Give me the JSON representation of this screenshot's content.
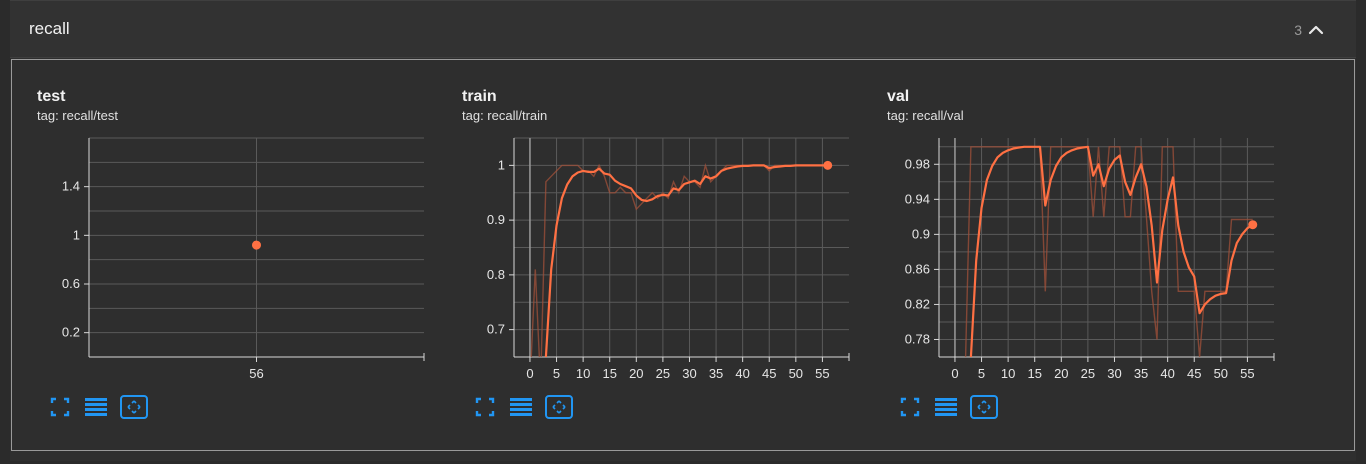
{
  "section": {
    "title": "recall",
    "count": "3"
  },
  "cards": [
    {
      "title": "test",
      "tag": "tag: recall/test",
      "chart_data": {
        "type": "scatter",
        "title": "test",
        "x_ticks": [
          56
        ],
        "y_ticks": [
          0.2,
          0.6,
          1,
          1.4
        ],
        "y_tick_labels": [
          "0.2",
          "0.6",
          "1",
          "1.4"
        ],
        "xlim": [
          0,
          112
        ],
        "ylim": [
          0.0,
          1.8
        ],
        "grid": true,
        "series": [
          {
            "x": [
              56
            ],
            "y": [
              0.92
            ]
          }
        ]
      }
    },
    {
      "title": "train",
      "tag": "tag: recall/train",
      "chart_data": {
        "type": "line",
        "title": "train",
        "x_ticks": [
          0,
          5,
          10,
          15,
          20,
          25,
          30,
          35,
          40,
          45,
          50,
          55
        ],
        "y_ticks": [
          0.7,
          0.8,
          0.9,
          1
        ],
        "y_tick_labels": [
          "0.7",
          "0.8",
          "0.9",
          "1"
        ],
        "xlim": [
          -3,
          60
        ],
        "ylim": [
          0.65,
          1.05
        ],
        "grid": true,
        "series": [
          {
            "role": "raw",
            "x": [
              0,
              1,
              2,
              3,
              4,
              5,
              6,
              7,
              8,
              9,
              10,
              11,
              12,
              13,
              14,
              15,
              16,
              17,
              18,
              19,
              20,
              21,
              22,
              23,
              24,
              25,
              26,
              27,
              28,
              29,
              30,
              31,
              32,
              33,
              34,
              35,
              36,
              37,
              38,
              39,
              40,
              41,
              42,
              43,
              44,
              45,
              46,
              47,
              48,
              49,
              50,
              51,
              52,
              53,
              54,
              55,
              56
            ],
            "y": [
              0.6,
              0.81,
              0.6,
              0.97,
              0.98,
              0.99,
              1.0,
              1.0,
              1.0,
              1.0,
              0.99,
              0.99,
              0.98,
              1.0,
              0.98,
              0.95,
              0.95,
              0.96,
              0.95,
              0.95,
              0.92,
              0.93,
              0.94,
              0.95,
              0.94,
              0.95,
              0.94,
              0.97,
              0.95,
              0.98,
              0.97,
              0.97,
              0.96,
              1.0,
              0.97,
              0.98,
              0.99,
              1.0,
              1.0,
              1.0,
              1.0,
              1.0,
              1.0,
              1.0,
              1.0,
              0.99,
              1.0,
              1.0,
              1.0,
              1.0,
              1.0,
              1.0,
              1.0,
              1.0,
              1.0,
              1.0,
              1.0
            ]
          },
          {
            "role": "smoothed",
            "x": [
              3,
              4,
              5,
              6,
              7,
              8,
              9,
              10,
              11,
              12,
              13,
              14,
              15,
              16,
              17,
              18,
              19,
              20,
              21,
              22,
              23,
              24,
              25,
              26,
              27,
              28,
              29,
              30,
              31,
              32,
              33,
              34,
              35,
              36,
              37,
              38,
              39,
              40,
              41,
              42,
              43,
              44,
              45,
              46,
              47,
              48,
              49,
              50,
              51,
              52,
              53,
              54,
              55,
              56
            ],
            "y": [
              0.65,
              0.81,
              0.89,
              0.94,
              0.965,
              0.98,
              0.987,
              0.99,
              0.988,
              0.988,
              0.994,
              0.985,
              0.983,
              0.972,
              0.966,
              0.962,
              0.958,
              0.945,
              0.937,
              0.935,
              0.938,
              0.944,
              0.946,
              0.945,
              0.958,
              0.955,
              0.966,
              0.969,
              0.972,
              0.966,
              0.98,
              0.976,
              0.98,
              0.99,
              0.994,
              0.996,
              0.998,
              0.999,
              0.999,
              1.0,
              1.0,
              1.0,
              0.995,
              0.997,
              0.998,
              0.999,
              0.999,
              1.0,
              1.0,
              1.0,
              1.0,
              1.0,
              1.0,
              1.0
            ]
          }
        ]
      }
    },
    {
      "title": "val",
      "tag": "tag: recall/val",
      "chart_data": {
        "type": "line",
        "title": "val",
        "x_ticks": [
          0,
          5,
          10,
          15,
          20,
          25,
          30,
          35,
          40,
          45,
          50,
          55
        ],
        "y_ticks": [
          0.78,
          0.82,
          0.86,
          0.9,
          0.94,
          0.98
        ],
        "y_tick_labels": [
          "0.78",
          "0.82",
          "0.86",
          "0.9",
          "0.94",
          "0.98"
        ],
        "xlim": [
          -3,
          60
        ],
        "ylim": [
          0.76,
          1.01
        ],
        "grid": true,
        "series": [
          {
            "role": "raw",
            "x": [
              2,
              3,
              4,
              5,
              6,
              7,
              8,
              9,
              10,
              11,
              12,
              13,
              14,
              15,
              16,
              17,
              18,
              19,
              20,
              21,
              22,
              23,
              24,
              25,
              26,
              27,
              28,
              29,
              30,
              31,
              32,
              33,
              34,
              35,
              36,
              37,
              38,
              39,
              40,
              41,
              42,
              43,
              44,
              45,
              46,
              47,
              48,
              49,
              50,
              51,
              52,
              53,
              54,
              55,
              56
            ],
            "y": [
              0.76,
              1.0,
              1.0,
              1.0,
              1.0,
              1.0,
              1.0,
              1.0,
              1.0,
              1.0,
              1.0,
              1.0,
              1.0,
              1.0,
              1.0,
              0.835,
              1.0,
              1.0,
              1.0,
              1.0,
              1.0,
              1.0,
              1.0,
              1.0,
              0.92,
              1.0,
              0.92,
              1.0,
              1.0,
              1.0,
              0.92,
              0.92,
              1.0,
              1.0,
              0.92,
              0.835,
              0.78,
              1.0,
              1.0,
              1.0,
              0.835,
              0.835,
              0.835,
              0.835,
              0.76,
              0.835,
              0.835,
              0.835,
              0.835,
              0.835,
              0.917,
              0.917,
              0.917,
              0.917,
              0.917
            ]
          },
          {
            "role": "smoothed",
            "x": [
              3,
              4,
              5,
              6,
              7,
              8,
              9,
              10,
              11,
              12,
              13,
              14,
              15,
              16,
              17,
              18,
              19,
              20,
              21,
              22,
              23,
              24,
              25,
              26,
              27,
              28,
              29,
              30,
              31,
              32,
              33,
              34,
              35,
              36,
              37,
              38,
              39,
              40,
              41,
              42,
              43,
              44,
              45,
              46,
              47,
              48,
              49,
              50,
              51,
              52,
              53,
              54,
              55,
              56
            ],
            "y": [
              0.76,
              0.87,
              0.93,
              0.962,
              0.978,
              0.988,
              0.993,
              0.996,
              0.998,
              0.999,
              1.0,
              1.0,
              1.0,
              1.0,
              0.933,
              0.962,
              0.978,
              0.988,
              0.993,
              0.996,
              0.998,
              0.999,
              1.0,
              0.967,
              0.98,
              0.955,
              0.975,
              0.985,
              0.99,
              0.96,
              0.945,
              0.965,
              0.98,
              0.955,
              0.91,
              0.845,
              0.905,
              0.94,
              0.965,
              0.91,
              0.88,
              0.862,
              0.852,
              0.81,
              0.82,
              0.826,
              0.83,
              0.832,
              0.833,
              0.87,
              0.89,
              0.9,
              0.907,
              0.911
            ]
          }
        ]
      }
    }
  ],
  "colors": {
    "line": "#ff7043",
    "raw_line": "#a0503a",
    "grid": "#5a5a5a",
    "axis": "#d8d8d8",
    "toolbar_icon": "#2196f3"
  },
  "toolbar_icons": [
    "fullscreen-icon",
    "toggle-log-scale-icon",
    "fit-domain-icon"
  ]
}
